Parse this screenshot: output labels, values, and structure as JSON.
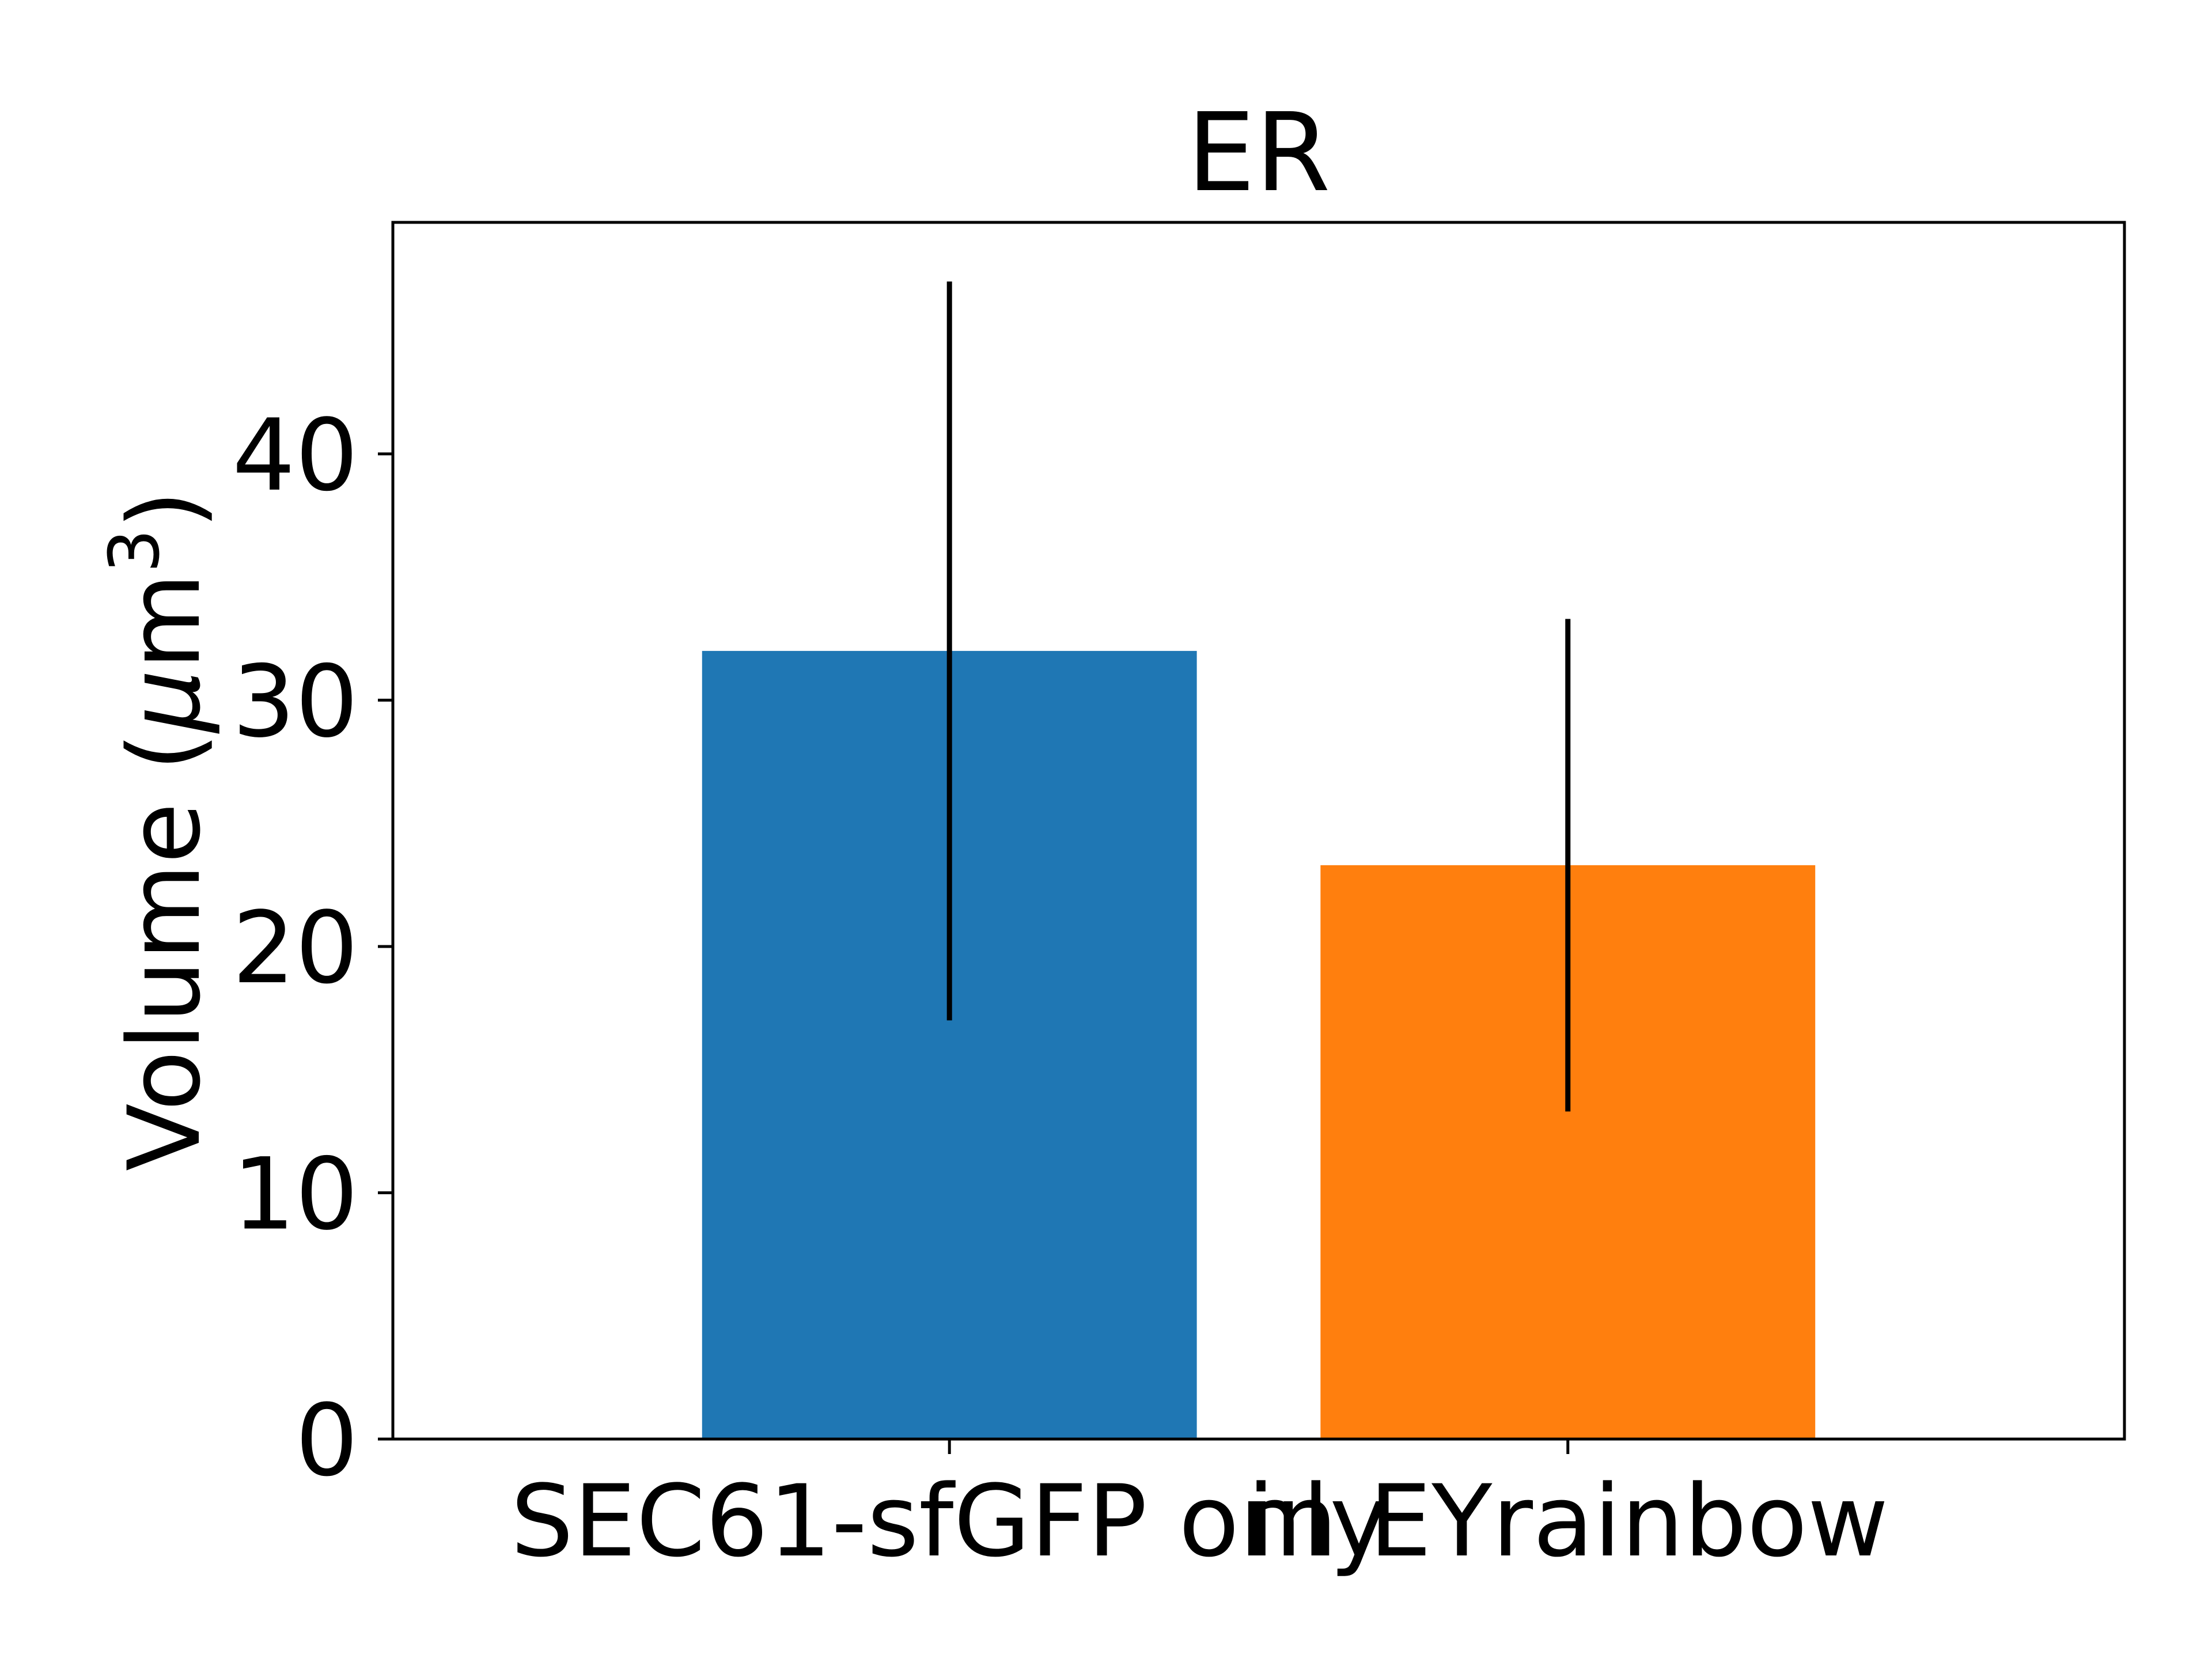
{
  "chart_data": {
    "type": "bar",
    "title": "ER",
    "ylabel_main": "Volume (",
    "ylabel_mu": "μ",
    "ylabel_unit": "m",
    "ylabel_sup": "3",
    "ylabel_close": ")",
    "xlabel": "",
    "categories": [
      "SEC61-sfGFP only",
      "in EYrainbow"
    ],
    "values": [
      32.0,
      23.3
    ],
    "error_low": [
      17.0,
      13.3
    ],
    "error_high": [
      47.0,
      33.3
    ],
    "colors": [
      "#1f77b4",
      "#ff7f0e"
    ],
    "error_color": "#000000",
    "ylim": [
      0,
      49.4
    ],
    "yticks": [
      0,
      10,
      20,
      30,
      40
    ],
    "grid": false,
    "legend": "none"
  }
}
